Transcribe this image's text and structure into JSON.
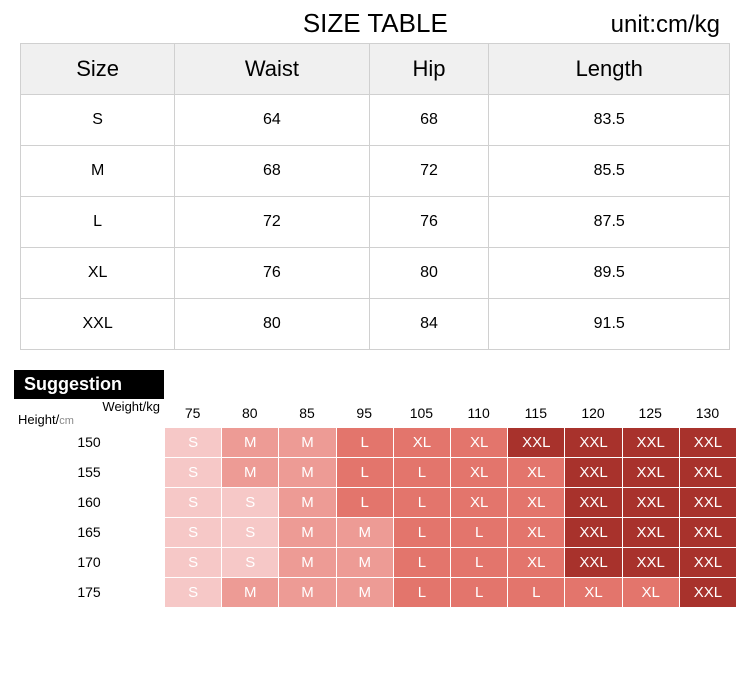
{
  "title": "SIZE TABLE",
  "unit": "unit:cm/kg",
  "size_table": {
    "columns": [
      "Size",
      "Waist",
      "Hip",
      "Length"
    ],
    "rows": [
      [
        "S",
        "64",
        "68",
        "83.5"
      ],
      [
        "M",
        "68",
        "72",
        "85.5"
      ],
      [
        "L",
        "72",
        "76",
        "87.5"
      ],
      [
        "XL",
        "76",
        "80",
        "89.5"
      ],
      [
        "XXL",
        "80",
        "84",
        "91.5"
      ]
    ],
    "header_bg": "#f0f0f0",
    "border_color": "#d0d0d0"
  },
  "suggestion": {
    "badge": "Suggestion",
    "weight_label": "Weight/kg",
    "height_label": "Height/",
    "height_unit": "cm",
    "weights": [
      "75",
      "80",
      "85",
      "95",
      "105",
      "110",
      "115",
      "120",
      "125",
      "130"
    ],
    "heights": [
      "150",
      "155",
      "160",
      "165",
      "170",
      "175"
    ],
    "grid": [
      [
        {
          "v": "S",
          "c": 0
        },
        {
          "v": "M",
          "c": 1
        },
        {
          "v": "M",
          "c": 1
        },
        {
          "v": "L",
          "c": 2
        },
        {
          "v": "XL",
          "c": 2
        },
        {
          "v": "XL",
          "c": 2
        },
        {
          "v": "XXL",
          "c": 3
        },
        {
          "v": "XXL",
          "c": 3
        },
        {
          "v": "XXL",
          "c": 3
        },
        {
          "v": "XXL",
          "c": 3
        }
      ],
      [
        {
          "v": "S",
          "c": 0
        },
        {
          "v": "M",
          "c": 1
        },
        {
          "v": "M",
          "c": 1
        },
        {
          "v": "L",
          "c": 2
        },
        {
          "v": "L",
          "c": 2
        },
        {
          "v": "XL",
          "c": 2
        },
        {
          "v": "XL",
          "c": 2
        },
        {
          "v": "XXL",
          "c": 3
        },
        {
          "v": "XXL",
          "c": 3
        },
        {
          "v": "XXL",
          "c": 3
        }
      ],
      [
        {
          "v": "S",
          "c": 0
        },
        {
          "v": "S",
          "c": 0
        },
        {
          "v": "M",
          "c": 1
        },
        {
          "v": "L",
          "c": 2
        },
        {
          "v": "L",
          "c": 2
        },
        {
          "v": "XL",
          "c": 2
        },
        {
          "v": "XL",
          "c": 2
        },
        {
          "v": "XXL",
          "c": 3
        },
        {
          "v": "XXL",
          "c": 3
        },
        {
          "v": "XXL",
          "c": 3
        }
      ],
      [
        {
          "v": "S",
          "c": 0
        },
        {
          "v": "S",
          "c": 0
        },
        {
          "v": "M",
          "c": 1
        },
        {
          "v": "M",
          "c": 1
        },
        {
          "v": "L",
          "c": 2
        },
        {
          "v": "L",
          "c": 2
        },
        {
          "v": "XL",
          "c": 2
        },
        {
          "v": "XXL",
          "c": 3
        },
        {
          "v": "XXL",
          "c": 3
        },
        {
          "v": "XXL",
          "c": 3
        }
      ],
      [
        {
          "v": "S",
          "c": 0
        },
        {
          "v": "S",
          "c": 0
        },
        {
          "v": "M",
          "c": 1
        },
        {
          "v": "M",
          "c": 1
        },
        {
          "v": "L",
          "c": 2
        },
        {
          "v": "L",
          "c": 2
        },
        {
          "v": "XL",
          "c": 2
        },
        {
          "v": "XXL",
          "c": 3
        },
        {
          "v": "XXL",
          "c": 3
        },
        {
          "v": "XXL",
          "c": 3
        }
      ],
      [
        {
          "v": "S",
          "c": 0
        },
        {
          "v": "M",
          "c": 1
        },
        {
          "v": "M",
          "c": 1
        },
        {
          "v": "M",
          "c": 1
        },
        {
          "v": "L",
          "c": 2
        },
        {
          "v": "L",
          "c": 2
        },
        {
          "v": "L",
          "c": 2
        },
        {
          "v": "XL",
          "c": 2
        },
        {
          "v": "XL",
          "c": 2
        },
        {
          "v": "XXL",
          "c": 3
        }
      ]
    ],
    "colors": [
      "#f6c8c7",
      "#ed9b95",
      "#e3756c",
      "#a8322c"
    ]
  }
}
